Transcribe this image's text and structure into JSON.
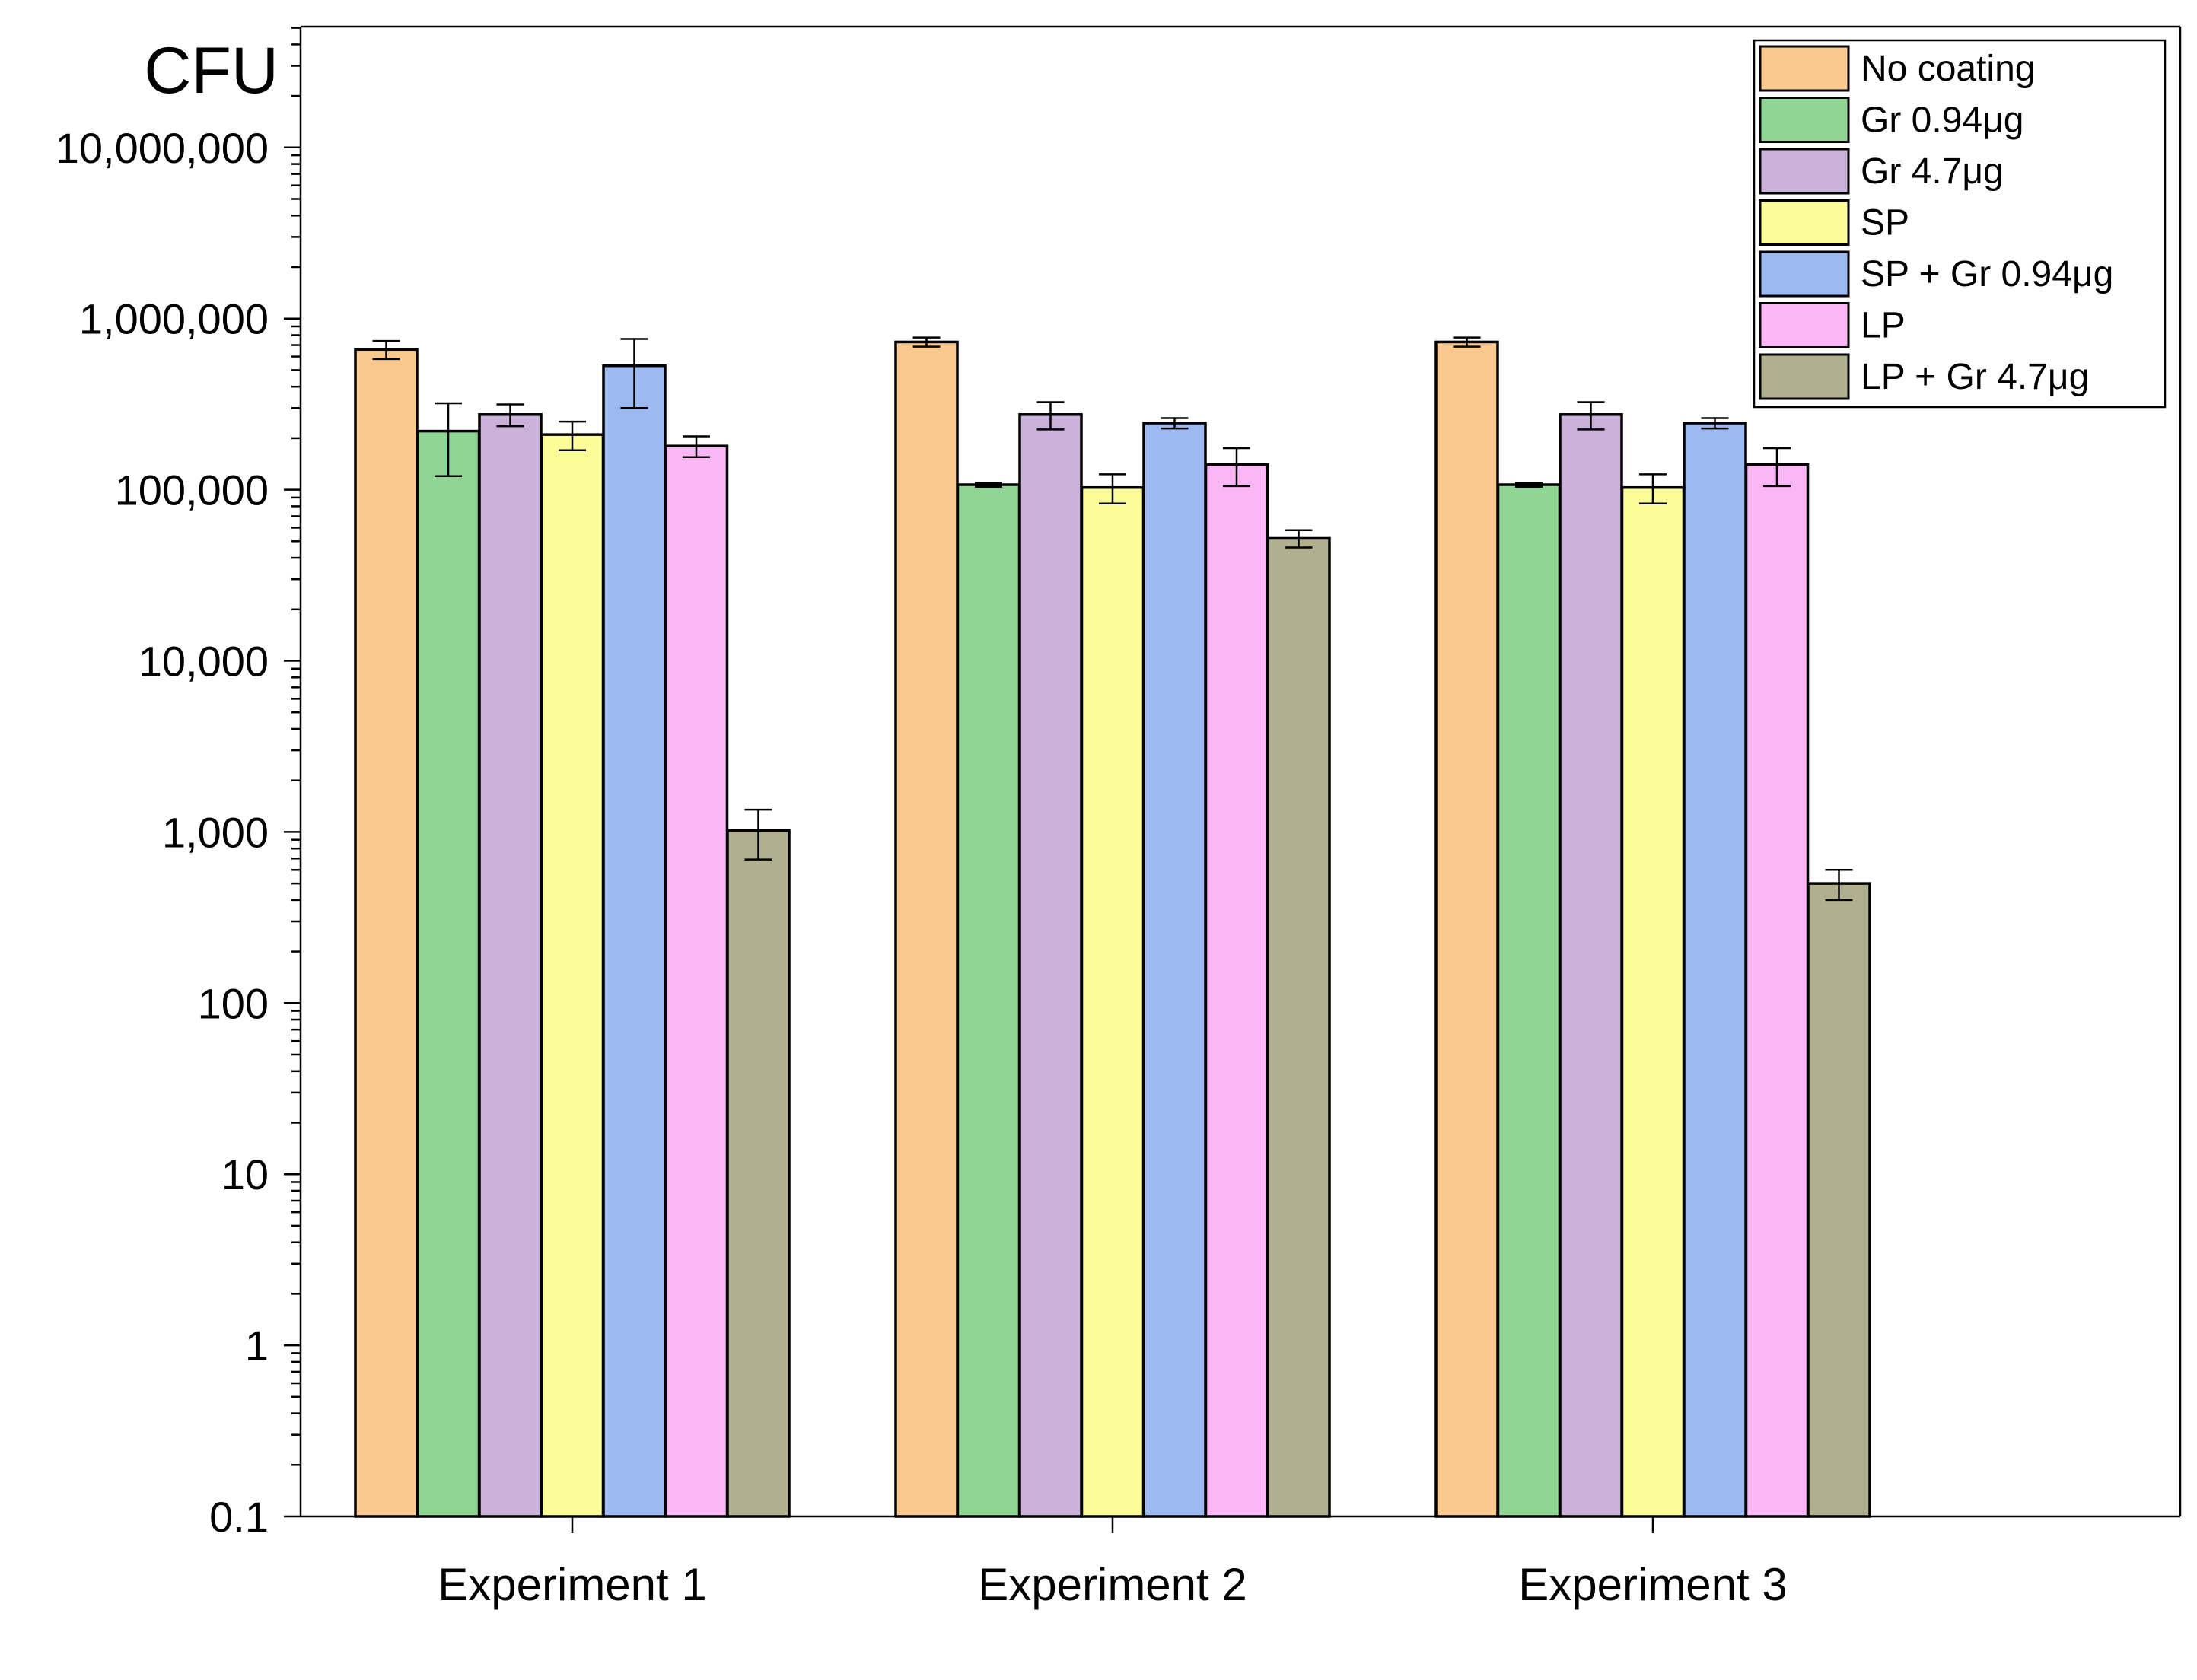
{
  "chart_data": {
    "type": "bar",
    "title": "",
    "xlabel": "",
    "ylabel": "CFU",
    "yscale": "log",
    "ylim": [
      0.1,
      100000000
    ],
    "ytick_values": [
      0.1,
      1,
      10,
      100,
      1000,
      10000,
      100000,
      1000000,
      10000000
    ],
    "ytick_labels": [
      "0.1",
      "1",
      "10",
      "100",
      "1,000",
      "10,000",
      "100,000",
      "1,000,000",
      "10,000,000"
    ],
    "categories": [
      "Experiment 1",
      "Experiment 2",
      "Experiment 3"
    ],
    "legend_position": "top-right",
    "series": [
      {
        "name": "No coating",
        "color": "#FBC98E",
        "values": [
          660000,
          730000,
          730000
        ],
        "errors": [
          80000,
          45000,
          45000
        ]
      },
      {
        "name": "Gr 0.94μg",
        "color": "#8FD694",
        "values": [
          220000,
          107000,
          107000
        ],
        "errors": [
          100000,
          3000,
          3000
        ]
      },
      {
        "name": "Gr 4.7μg",
        "color": "#C9B1D9",
        "values": [
          275000,
          275000,
          275000
        ],
        "errors": [
          40000,
          50000,
          50000
        ]
      },
      {
        "name": "SP",
        "color": "#FCFC98",
        "values": [
          210000,
          103000,
          103000
        ],
        "errors": [
          40000,
          20000,
          20000
        ]
      },
      {
        "name": "SP + Gr 0.94μg",
        "color": "#9CB9F1",
        "values": [
          530000,
          245000,
          245000
        ],
        "errors": [
          230000,
          17000,
          17000
        ]
      },
      {
        "name": "LP",
        "color": "#FBB6F5",
        "values": [
          180000,
          140000,
          140000
        ],
        "errors": [
          25000,
          35000,
          35000
        ]
      },
      {
        "name": "LP + Gr 4.7μg",
        "color": "#B1B08E",
        "values": [
          1020,
          52000,
          500
        ],
        "errors": [
          330,
          6000,
          100
        ]
      }
    ]
  }
}
